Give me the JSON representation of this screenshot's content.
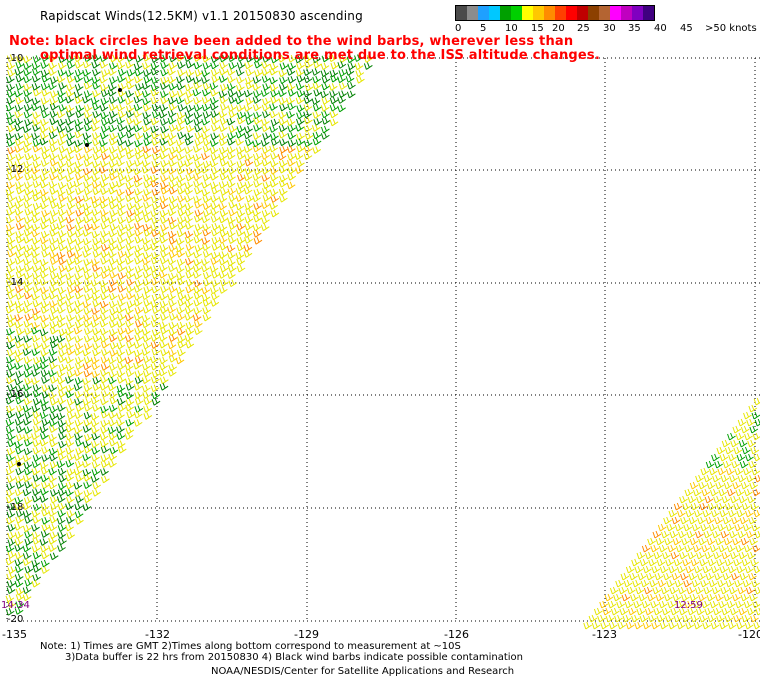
{
  "title": "Rapidscat Winds(12.5KM) v1.1 20150830 ascending",
  "note_line1": "Note: black circles have been added to the wind barbs, wherever less than",
  "note_line2": "optimal wind retrieval conditions are met due to the ISS altitude changes.",
  "legend": {
    "labels": [
      "0",
      "5",
      "10",
      "15",
      "20",
      "25",
      "30",
      "35",
      "40",
      "45",
      ">50 knots"
    ],
    "colors": [
      "#4b4b4b",
      "#8c8c8c",
      "#1ea0ff",
      "#00c8ff",
      "#00a000",
      "#00d000",
      "#ffff00",
      "#ffc800",
      "#ff8c00",
      "#ff4000",
      "#ff0000",
      "#c00000",
      "#8c4000",
      "#b46432",
      "#ff00ff",
      "#c000c0",
      "#8000c0",
      "#400080"
    ]
  },
  "axes": {
    "lat_labels": [
      "-10",
      "-12",
      "-14",
      "-16",
      "-18",
      "-20"
    ],
    "lon_labels": [
      "-135",
      "-132",
      "-129",
      "-126",
      "-123",
      "-120"
    ],
    "lat_range": [
      -20,
      -10
    ],
    "lon_range": [
      -135,
      -120
    ]
  },
  "times": [
    "14:34",
    "12:59"
  ],
  "footer": {
    "line1": "Note: 1) Times are GMT 2)Times along bottom correspond to measurement at ~10S",
    "line2": "3)Data buffer is 22 hrs from 20150830 4) Black wind barbs indicate possible contamination",
    "line3": "NOAA/NESDIS/Center for Satellite Applications and Research"
  }
}
